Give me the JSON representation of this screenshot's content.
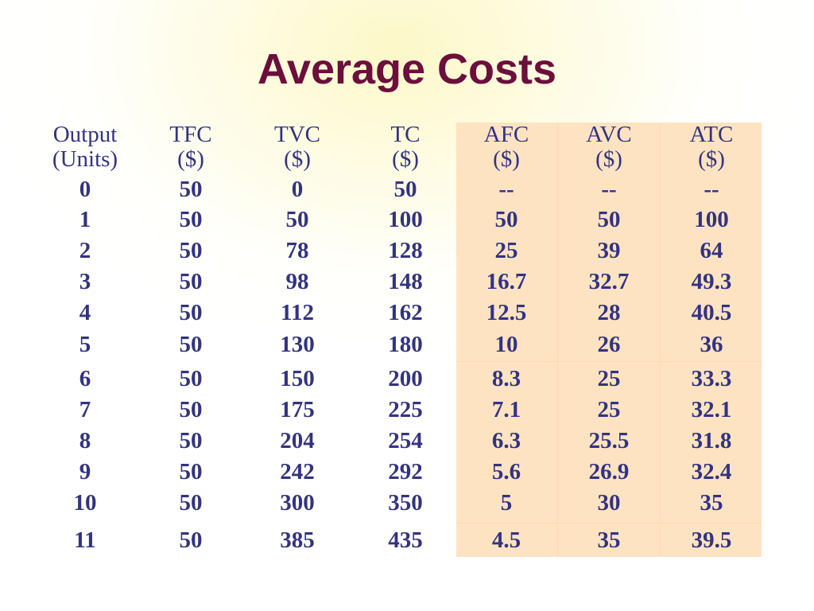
{
  "title": "Average Costs",
  "colors": {
    "title": "#6b0f3c",
    "table_text": "#333380",
    "highlight_bg": "#fde3c2"
  },
  "table": {
    "headers": [
      {
        "line1": "Output",
        "line2": "(Units)"
      },
      {
        "line1": "TFC",
        "line2": "($)"
      },
      {
        "line1": "TVC",
        "line2": "($)"
      },
      {
        "line1": "TC",
        "line2": "($)"
      },
      {
        "line1": "AFC",
        "line2": "($)"
      },
      {
        "line1": "AVC",
        "line2": "($)"
      },
      {
        "line1": "ATC",
        "line2": "($)"
      }
    ],
    "rows": [
      [
        "0",
        "50",
        "0",
        "50",
        "--",
        "--",
        "--"
      ],
      [
        "1",
        "50",
        "50",
        "100",
        "50",
        "50",
        "100"
      ],
      [
        "2",
        "50",
        "78",
        "128",
        "25",
        "39",
        "64"
      ],
      [
        "3",
        "50",
        "98",
        "148",
        "16.7",
        "32.7",
        "49.3"
      ],
      [
        "4",
        "50",
        "112",
        "162",
        "12.5",
        "28",
        "40.5"
      ],
      [
        "5",
        "50",
        "130",
        "180",
        "10",
        "26",
        "36"
      ],
      [
        "6",
        "50",
        "150",
        "200",
        "8.3",
        "25",
        "33.3"
      ],
      [
        "7",
        "50",
        "175",
        "225",
        "7.1",
        "25",
        "32.1"
      ],
      [
        "8",
        "50",
        "204",
        "254",
        "6.3",
        "25.5",
        "31.8"
      ],
      [
        "9",
        "50",
        "242",
        "292",
        "5.6",
        "26.9",
        "32.4"
      ],
      [
        "10",
        "50",
        "300",
        "350",
        "5",
        "30",
        "35"
      ],
      [
        "11",
        "50",
        "385",
        "435",
        "4.5",
        "35",
        "39.5"
      ]
    ]
  }
}
